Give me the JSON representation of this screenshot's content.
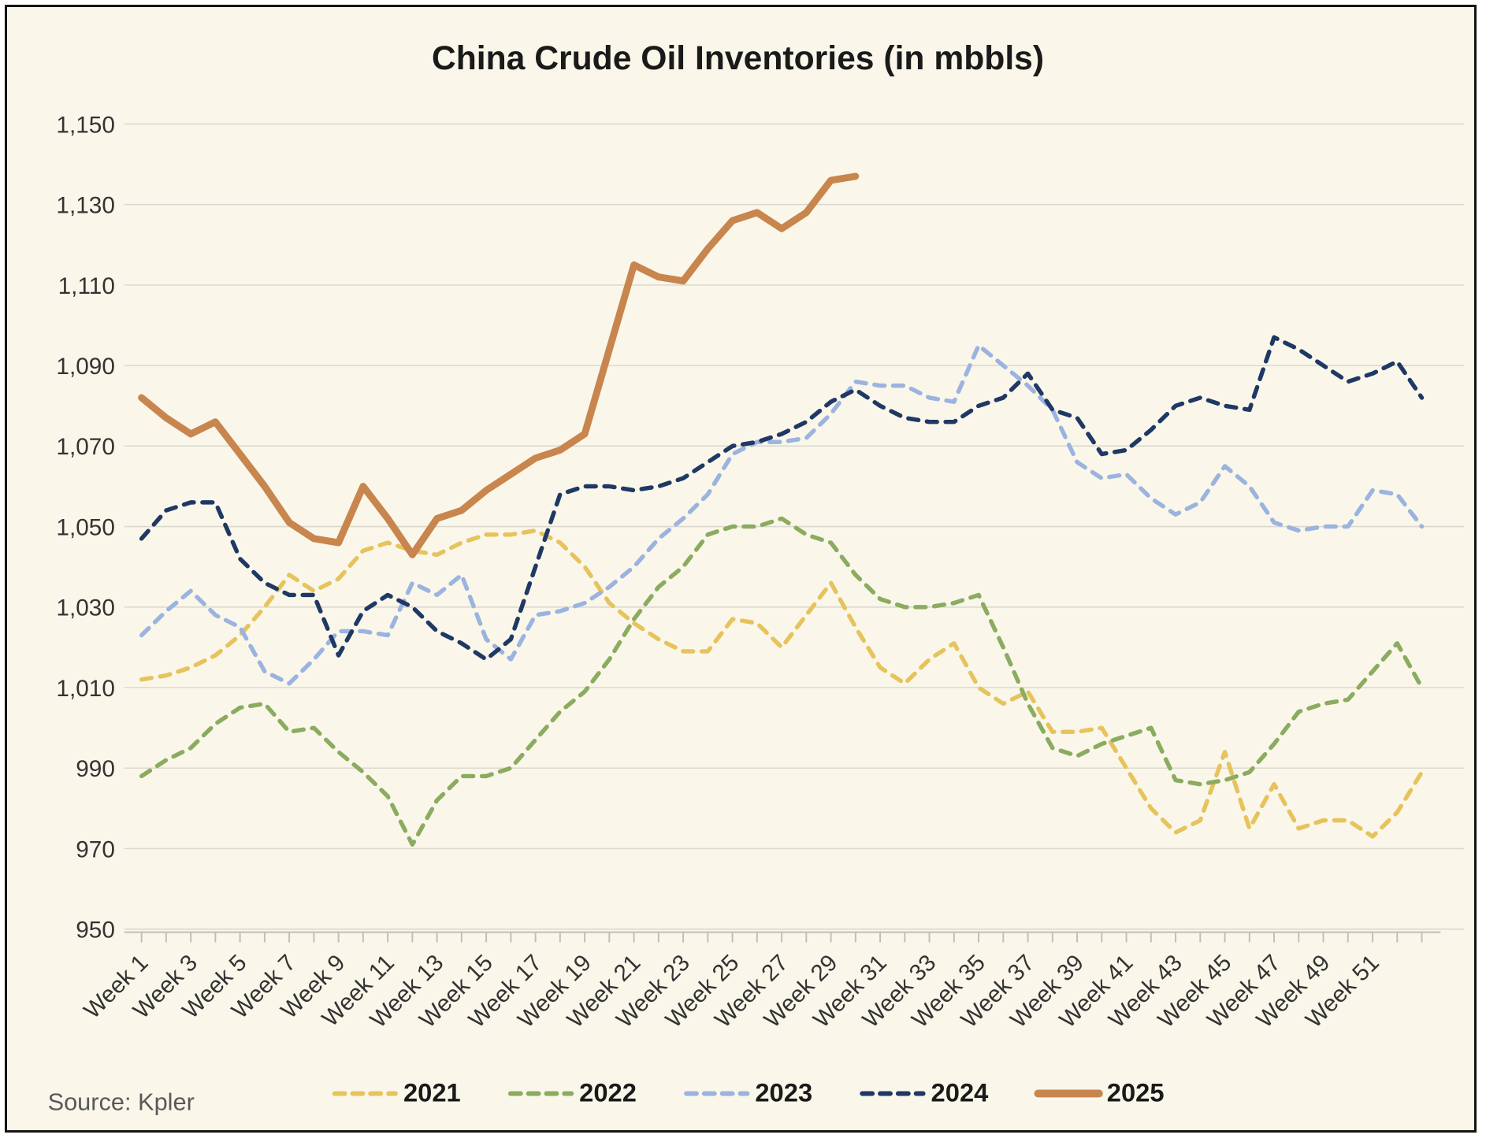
{
  "title": "China Crude Oil Inventories (in mbbls)",
  "source": "Source: Kpler",
  "colors": {
    "background": "#FAF7EA",
    "border": "#141414",
    "gridline": "#DBD9CF",
    "axis_line": "#C0BFB6",
    "title_text": "#1A1A1A",
    "axis_text": "#333333",
    "source_text": "#595959",
    "legend_text": "#1A1A1A"
  },
  "chart_data": {
    "type": "line",
    "title": "China Crude Oil Inventories (in mbbls)",
    "xlabel": "",
    "ylabel": "",
    "ylim": [
      950,
      1150
    ],
    "y_tick_step": 20,
    "grid": "horizontal",
    "legend_position": "bottom",
    "y_tick_labels": [
      "950",
      "970",
      "990",
      "1,010",
      "1,030",
      "1,050",
      "1,070",
      "1,090",
      "1,110",
      "1,130",
      "1,150"
    ],
    "x_tick_labels": [
      "Week 1",
      "Week 3",
      "Week 5",
      "Week 7",
      "Week 9",
      "Week 11",
      "Week 13",
      "Week 15",
      "Week 17",
      "Week 19",
      "Week 21",
      "Week 23",
      "Week 25",
      "Week 27",
      "Week 29",
      "Week 31",
      "Week 33",
      "Week 35",
      "Week 37",
      "Week 39",
      "Week 41",
      "Week 43",
      "Week 45",
      "Week 47",
      "Week 49",
      "Week 51"
    ],
    "series": [
      {
        "name": "2021",
        "color": "#E6C35C",
        "style": "dashed",
        "stroke_width": 5.5,
        "values": [
          1012,
          1013,
          1015,
          1018,
          1023,
          1030,
          1038,
          1034,
          1037,
          1044,
          1046,
          1044,
          1043,
          1046,
          1048,
          1048,
          1049,
          1046,
          1040,
          1031,
          1026,
          1022,
          1019,
          1019,
          1027,
          1026,
          1020,
          1028,
          1036,
          1025,
          1015,
          1011,
          1017,
          1021,
          1010,
          1006,
          1009,
          999,
          999,
          1000,
          990,
          980,
          974,
          977,
          994,
          975,
          986,
          975,
          977,
          977,
          973,
          979,
          989
        ]
      },
      {
        "name": "2022",
        "color": "#8BAC60",
        "style": "dashed",
        "stroke_width": 5.5,
        "values": [
          988,
          992,
          995,
          1001,
          1005,
          1006,
          999,
          1000,
          994,
          989,
          983,
          971,
          982,
          988,
          988,
          990,
          997,
          1004,
          1009,
          1017,
          1027,
          1035,
          1040,
          1048,
          1050,
          1050,
          1052,
          1048,
          1046,
          1038,
          1032,
          1030,
          1030,
          1031,
          1033,
          1020,
          1006,
          995,
          993,
          996,
          998,
          1000,
          987,
          986,
          987,
          989,
          996,
          1004,
          1006,
          1007,
          1014,
          1021,
          1010
        ]
      },
      {
        "name": "2023",
        "color": "#9BB3DF",
        "style": "dashed",
        "stroke_width": 5.5,
        "values": [
          1023,
          1029,
          1034,
          1028,
          1025,
          1014,
          1011,
          1017,
          1024,
          1024,
          1023,
          1036,
          1033,
          1038,
          1022,
          1017,
          1028,
          1029,
          1031,
          1035,
          1040,
          1047,
          1052,
          1058,
          1068,
          1071,
          1071,
          1072,
          1078,
          1086,
          1085,
          1085,
          1082,
          1081,
          1095,
          1090,
          1085,
          1079,
          1066,
          1062,
          1063,
          1057,
          1053,
          1056,
          1065,
          1060,
          1051,
          1049,
          1050,
          1050,
          1059,
          1058,
          1050
        ]
      },
      {
        "name": "2024",
        "color": "#1F3864",
        "style": "dashed",
        "stroke_width": 5.5,
        "values": [
          1047,
          1054,
          1056,
          1056,
          1042,
          1036,
          1033,
          1033,
          1018,
          1029,
          1033,
          1030,
          1024,
          1021,
          1017,
          1022,
          1040,
          1058,
          1060,
          1060,
          1059,
          1060,
          1062,
          1066,
          1070,
          1071,
          1073,
          1076,
          1081,
          1084,
          1080,
          1077,
          1076,
          1076,
          1080,
          1082,
          1088,
          1079,
          1077,
          1068,
          1069,
          1074,
          1080,
          1082,
          1080,
          1079,
          1097,
          1094,
          1090,
          1086,
          1088,
          1091,
          1082
        ]
      },
      {
        "name": "2025",
        "color": "#C8854E",
        "style": "solid",
        "stroke_width": 9,
        "values": [
          1082,
          1077,
          1073,
          1076,
          1068,
          1060,
          1051,
          1047,
          1046,
          1060,
          1052,
          1043,
          1052,
          1054,
          1059,
          1063,
          1067,
          1069,
          1073,
          1094,
          1115,
          1112,
          1111,
          1119,
          1126,
          1128,
          1124,
          1128,
          1136,
          1137
        ]
      }
    ]
  }
}
